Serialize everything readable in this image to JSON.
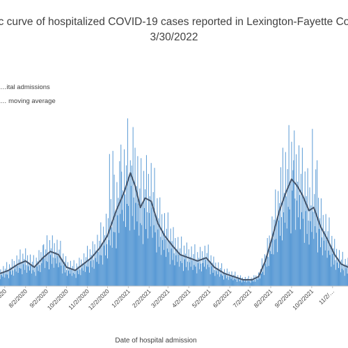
{
  "chart_data": {
    "type": "bar",
    "title_line1": "…c curve of hospitalized COVID-19 cases reported in Lexington-Fayette Co…",
    "title_line2": "3/30/2022",
    "xlabel": "Date of hospital admission",
    "ylabel": "",
    "grid": false,
    "legend_position": "top-left",
    "legend": [
      {
        "label": "…ital admissions",
        "color": "#5b9bd5",
        "kind": "bar"
      },
      {
        "label": "… moving average",
        "color": "#44546a",
        "kind": "line"
      }
    ],
    "x_start": "2020-06-25",
    "x_end": "2021-11-25",
    "y_range": [
      0,
      30
    ],
    "x_tick_labels": [
      "…2020",
      "8/2/2020",
      "9/2/2020",
      "10/2/2020",
      "11/2/2020",
      "12/2/2020",
      "1/2/2021",
      "2/2/2021",
      "3/2/2021",
      "4/2/2021",
      "5/2/2021",
      "6/2/2021",
      "7/2/2021",
      "8/2/2021",
      "9/2/2021",
      "10/2/2021",
      "11/2/…"
    ],
    "x_tick_dates": [
      "2020-07-02",
      "2020-08-02",
      "2020-09-02",
      "2020-10-02",
      "2020-11-02",
      "2020-12-02",
      "2021-01-02",
      "2021-02-02",
      "2021-03-02",
      "2021-04-02",
      "2021-05-02",
      "2021-06-02",
      "2021-07-02",
      "2021-08-02",
      "2021-09-02",
      "2021-10-02",
      "2021-11-02"
    ],
    "series": [
      {
        "name": "… moving average",
        "kind": "line",
        "points": [
          [
            "2020-06-25",
            2.0
          ],
          [
            "2020-07-08",
            2.5
          ],
          [
            "2020-07-22",
            3.5
          ],
          [
            "2020-08-02",
            4.0
          ],
          [
            "2020-08-15",
            3.0
          ],
          [
            "2020-08-28",
            4.5
          ],
          [
            "2020-09-08",
            5.5
          ],
          [
            "2020-09-20",
            5.0
          ],
          [
            "2020-10-02",
            3.0
          ],
          [
            "2020-10-15",
            2.5
          ],
          [
            "2020-10-27",
            3.5
          ],
          [
            "2020-11-08",
            4.5
          ],
          [
            "2020-11-20",
            6.0
          ],
          [
            "2020-12-02",
            8.0
          ],
          [
            "2020-12-15",
            12.0
          ],
          [
            "2020-12-27",
            15.0
          ],
          [
            "2021-01-05",
            18.0
          ],
          [
            "2021-01-12",
            16.0
          ],
          [
            "2021-01-20",
            12.5
          ],
          [
            "2021-01-27",
            14.0
          ],
          [
            "2021-02-05",
            13.5
          ],
          [
            "2021-02-15",
            10.0
          ],
          [
            "2021-02-25",
            8.0
          ],
          [
            "2021-03-08",
            6.5
          ],
          [
            "2021-03-20",
            5.0
          ],
          [
            "2021-04-02",
            4.5
          ],
          [
            "2021-04-15",
            4.0
          ],
          [
            "2021-04-28",
            4.5
          ],
          [
            "2021-05-10",
            3.0
          ],
          [
            "2021-05-25",
            2.0
          ],
          [
            "2021-06-08",
            1.5
          ],
          [
            "2021-06-22",
            1.0
          ],
          [
            "2021-07-05",
            1.0
          ],
          [
            "2021-07-15",
            1.5
          ],
          [
            "2021-07-25",
            4.0
          ],
          [
            "2021-08-05",
            8.0
          ],
          [
            "2021-08-15",
            12.0
          ],
          [
            "2021-08-25",
            15.0
          ],
          [
            "2021-09-02",
            17.0
          ],
          [
            "2021-09-10",
            16.0
          ],
          [
            "2021-09-18",
            14.5
          ],
          [
            "2021-09-28",
            12.0
          ],
          [
            "2021-10-05",
            12.5
          ],
          [
            "2021-10-15",
            9.5
          ],
          [
            "2021-10-25",
            7.5
          ],
          [
            "2021-11-05",
            5.0
          ],
          [
            "2021-11-15",
            3.5
          ],
          [
            "2021-11-25",
            3.0
          ]
        ]
      },
      {
        "name": "…ital admissions",
        "kind": "bar",
        "noise_pattern": [
          0.55,
          1.3,
          0.85,
          1.05,
          0.7,
          1.45,
          0.95,
          0.6,
          1.2,
          0.8,
          1.6,
          0.75,
          1.0,
          0.5,
          1.35,
          0.9,
          1.1,
          0.65,
          1.5,
          0.85
        ],
        "spikes": [
          [
            "2020-08-28",
            6.5
          ],
          [
            "2020-12-05",
            21.0
          ],
          [
            "2020-12-10",
            21.5
          ],
          [
            "2020-12-22",
            22.5
          ],
          [
            "2021-01-05",
            20.0
          ],
          [
            "2021-01-12",
            22.0
          ],
          [
            "2021-08-20",
            22.0
          ],
          [
            "2021-09-05",
            20.0
          ],
          [
            "2021-09-18",
            22.0
          ],
          [
            "2021-10-03",
            25.0
          ],
          [
            "2021-10-10",
            20.0
          ]
        ]
      }
    ]
  }
}
